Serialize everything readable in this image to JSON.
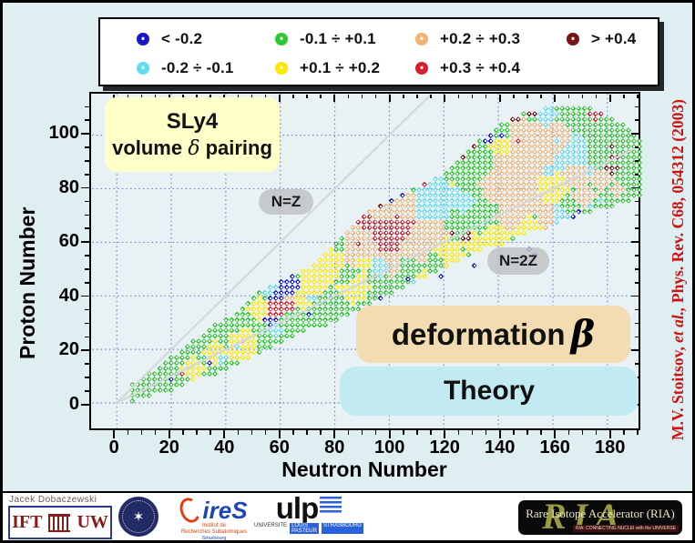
{
  "colors": {
    "slide_bg": "#dfeef1",
    "plot_bg": "#e8f1f4",
    "grid": "#2c47c8",
    "frame": "#000000",
    "citation": "#cc1212",
    "sly4_box_bg": "#ffffc9",
    "pill_bg": "#bec0c2",
    "deform_box_bg": "#f3dcb2",
    "theory_box_bg": "#c2eaf2"
  },
  "legend": {
    "items": [
      {
        "label": "< -0.2",
        "cat": "blue",
        "row": 0,
        "col": 0
      },
      {
        "label": "-0.2 ÷ -0.1",
        "cat": "cyan",
        "row": 1,
        "col": 0
      },
      {
        "label": "-0.1 ÷ +0.1",
        "cat": "green",
        "row": 0,
        "col": 1
      },
      {
        "label": "+0.1 ÷ +0.2",
        "cat": "yellow",
        "row": 1,
        "col": 1
      },
      {
        "label": "+0.2 ÷ +0.3",
        "cat": "orange",
        "row": 0,
        "col": 2
      },
      {
        "label": "+0.3 ÷ +0.4",
        "cat": "red",
        "row": 1,
        "col": 2
      },
      {
        "label": "> +0.4",
        "cat": "maroon",
        "row": 0,
        "col": 3
      }
    ]
  },
  "chart_data": {
    "type": "scatter",
    "description": "Nuclear chart heat-scatter of quadrupole deformation beta for even-even nuclei (SLy4, volume delta pairing), one diamond marker per nucleus on an even N x even Z lattice",
    "xlabel": "Neutron Number",
    "ylabel": "Proton Number",
    "x_range": [
      -9,
      191
    ],
    "y_range": [
      -9.5,
      115.5
    ],
    "x_major_ticks": [
      0,
      20,
      40,
      60,
      80,
      100,
      120,
      140,
      160,
      180
    ],
    "y_major_ticks": [
      0,
      20,
      40,
      60,
      80,
      100
    ],
    "minor_tick_step": 5,
    "grid": "dotted at major ticks",
    "legend_position": "top outside",
    "categories": {
      "blue": {
        "label": "< -0.2",
        "color": "#1818c8"
      },
      "cyan": {
        "label": "-0.2 ÷ -0.1",
        "color": "#5fdcf0"
      },
      "green": {
        "label": "-0.1 ÷ +0.1",
        "color": "#2fc82f"
      },
      "yellow": {
        "label": "+0.1 ÷ +0.2",
        "color": "#ffe800"
      },
      "orange": {
        "label": "+0.2 ÷ +0.3",
        "color": "#f2b375"
      },
      "red": {
        "label": "+0.3 ÷ +0.4",
        "color": "#d8202c"
      },
      "maroon": {
        "label": "> +0.4",
        "color": "#7a1216"
      }
    },
    "default_category": "green",
    "lattice_step": 2,
    "band": [
      [
        6,
        2,
        8
      ],
      [
        12,
        4,
        12
      ],
      [
        20,
        6,
        18
      ],
      [
        28,
        10,
        24
      ],
      [
        36,
        12,
        30
      ],
      [
        44,
        16,
        34
      ],
      [
        52,
        20,
        42
      ],
      [
        60,
        24,
        46
      ],
      [
        68,
        28,
        50
      ],
      [
        76,
        30,
        56
      ],
      [
        84,
        34,
        64
      ],
      [
        92,
        38,
        72
      ],
      [
        100,
        42,
        76
      ],
      [
        108,
        46,
        80
      ],
      [
        116,
        50,
        84
      ],
      [
        124,
        54,
        90
      ],
      [
        132,
        58,
        98
      ],
      [
        140,
        60,
        104
      ],
      [
        148,
        64,
        108
      ],
      [
        156,
        66,
        110
      ],
      [
        164,
        70,
        111
      ],
      [
        172,
        72,
        110
      ],
      [
        180,
        74,
        106
      ],
      [
        186,
        76,
        103
      ],
      [
        190,
        78,
        99
      ]
    ],
    "regions": [
      [
        28,
        14,
        3,
        "yellow"
      ],
      [
        36,
        20,
        3,
        "yellow"
      ],
      [
        45,
        22,
        4,
        "yellow"
      ],
      [
        48,
        26,
        3,
        "yellow"
      ],
      [
        52,
        36,
        3,
        "yellow"
      ],
      [
        68,
        40,
        3,
        "yellow"
      ],
      [
        72,
        46,
        4,
        "yellow"
      ],
      [
        78,
        52,
        4,
        "yellow"
      ],
      [
        86,
        44,
        4,
        "yellow"
      ],
      [
        90,
        54,
        3,
        "yellow"
      ],
      [
        112,
        46,
        3,
        "yellow"
      ],
      [
        120,
        56,
        4,
        "yellow"
      ],
      [
        130,
        60,
        3,
        "yellow"
      ],
      [
        138,
        63,
        3,
        "yellow"
      ],
      [
        150,
        64,
        4,
        "yellow"
      ],
      [
        157,
        82,
        5,
        "yellow"
      ],
      [
        140,
        96,
        3,
        "yellow"
      ],
      [
        122,
        82,
        3,
        "yellow"
      ],
      [
        38,
        18,
        2,
        "cyan"
      ],
      [
        44,
        22,
        2,
        "cyan"
      ],
      [
        58,
        28,
        2,
        "cyan"
      ],
      [
        56,
        44,
        3,
        "cyan"
      ],
      [
        70,
        40,
        2,
        "cyan"
      ],
      [
        96,
        52,
        3,
        "cyan"
      ],
      [
        108,
        44,
        2,
        "cyan"
      ],
      [
        114,
        74,
        5,
        "cyan"
      ],
      [
        120,
        80,
        5,
        "cyan"
      ],
      [
        126,
        76,
        3,
        "cyan"
      ],
      [
        148,
        60,
        3,
        "cyan"
      ],
      [
        160,
        70,
        3,
        "cyan"
      ],
      [
        165,
        92,
        6,
        "cyan"
      ],
      [
        160,
        98,
        3,
        "cyan"
      ],
      [
        157,
        87,
        3,
        "cyan"
      ],
      [
        156,
        108,
        3,
        "cyan"
      ],
      [
        46,
        24,
        2,
        "orange"
      ],
      [
        62,
        40,
        2,
        "orange"
      ],
      [
        90,
        58,
        5,
        "orange"
      ],
      [
        100,
        54,
        4,
        "orange"
      ],
      [
        110,
        60,
        5,
        "orange"
      ],
      [
        88,
        64,
        4,
        "orange"
      ],
      [
        96,
        72,
        4,
        "orange"
      ],
      [
        104,
        74,
        4,
        "orange"
      ],
      [
        114,
        64,
        4,
        "orange"
      ],
      [
        142,
        85,
        7,
        "orange"
      ],
      [
        152,
        92,
        8,
        "orange"
      ],
      [
        160,
        97,
        5,
        "orange"
      ],
      [
        166,
        87,
        4,
        "orange"
      ],
      [
        150,
        78,
        5,
        "orange"
      ],
      [
        144,
        70,
        4,
        "orange"
      ],
      [
        157,
        70,
        3,
        "orange"
      ],
      [
        170,
        78,
        3,
        "orange"
      ],
      [
        147,
        102,
        3,
        "orange"
      ],
      [
        176,
        84,
        3,
        "orange"
      ],
      [
        182,
        80,
        2,
        "orange"
      ],
      [
        24,
        12,
        1.2,
        "red"
      ],
      [
        58,
        36,
        3,
        "red"
      ],
      [
        62,
        38,
        2.5,
        "red"
      ],
      [
        98,
        62,
        5,
        "red"
      ],
      [
        103,
        66,
        4,
        "red"
      ],
      [
        96,
        68,
        3,
        "red"
      ],
      [
        90,
        68,
        3,
        "red"
      ],
      [
        88,
        60,
        2,
        "red"
      ],
      [
        112,
        84,
        1.5,
        "red"
      ],
      [
        146,
        98,
        1.5,
        "red"
      ],
      [
        174,
        108,
        1.5,
        "red"
      ],
      [
        20,
        10,
        1.2,
        "blue"
      ],
      [
        34,
        16,
        1.2,
        "blue"
      ],
      [
        60,
        42,
        4,
        "blue"
      ],
      [
        64,
        44,
        3,
        "blue"
      ],
      [
        56,
        32,
        1.8,
        "blue"
      ],
      [
        100,
        76,
        1.5,
        "blue"
      ],
      [
        104,
        78,
        1.3,
        "blue"
      ],
      [
        136,
        98,
        1.5,
        "blue"
      ],
      [
        140,
        100,
        1.3,
        "blue"
      ],
      [
        96,
        74,
        1.2,
        "maroon"
      ],
      [
        104,
        80,
        1.2,
        "maroon"
      ],
      [
        110,
        82,
        1.2,
        "maroon"
      ],
      [
        118,
        86,
        1.2,
        "maroon"
      ],
      [
        126,
        92,
        1.2,
        "maroon"
      ],
      [
        133,
        104,
        1.6,
        "maroon"
      ],
      [
        139,
        106,
        1.6,
        "maroon"
      ],
      [
        145,
        106,
        1.6,
        "maroon"
      ],
      [
        130,
        96,
        1.2,
        "maroon"
      ],
      [
        122,
        64,
        1.2,
        "maroon"
      ],
      [
        128,
        62,
        1.5,
        "maroon"
      ],
      [
        151,
        108,
        1.3,
        "maroon"
      ],
      [
        180,
        88,
        1.8,
        "maroon"
      ],
      [
        180,
        92,
        1.8,
        "maroon"
      ],
      [
        181,
        96,
        1.6,
        "maroon"
      ],
      [
        187,
        101,
        1.4,
        "maroon"
      ],
      [
        78,
        40,
        3,
        "green"
      ],
      [
        84,
        48,
        3,
        "green"
      ],
      [
        106,
        52,
        3,
        "green"
      ],
      [
        116,
        54,
        3,
        "green"
      ],
      [
        124,
        86,
        6,
        "green"
      ],
      [
        132,
        90,
        5,
        "green"
      ],
      [
        176,
        94,
        5,
        "green"
      ],
      [
        184,
        98,
        4,
        "green"
      ],
      [
        50,
        28,
        3,
        "green"
      ],
      [
        40,
        24,
        2,
        "green"
      ]
    ],
    "extra_points": [
      [
        70,
        34,
        "blue"
      ],
      [
        106,
        47,
        "blue"
      ],
      [
        118,
        48,
        "blue"
      ],
      [
        130,
        52,
        "blue"
      ],
      [
        150,
        58,
        "blue"
      ],
      [
        152,
        56,
        "blue"
      ],
      [
        166,
        70,
        "blue"
      ],
      [
        168,
        72,
        "blue"
      ],
      [
        172,
        74,
        "cyan"
      ],
      [
        176,
        76,
        "cyan"
      ],
      [
        96,
        40,
        "blue"
      ]
    ],
    "reference_lines": [
      {
        "label": "N=Z",
        "from": [
          0,
          0
        ],
        "to": [
          115,
          115
        ]
      },
      {
        "label": "N=2Z",
        "from": [
          0,
          0
        ],
        "to": [
          191,
          95.5
        ]
      }
    ],
    "annotations": {
      "model_line1": "SLy4",
      "model_line2_prefix": "volume ",
      "model_delta": "δ",
      "model_line2_suffix": " pairing",
      "nz_label": "N=Z",
      "n2z_label": "N=2Z",
      "quantity_prefix": "deformation",
      "quantity_symbol": "β",
      "theory_label": "Theory"
    }
  },
  "citation": {
    "part1": "M.V. Stoitsov, ",
    "part2": "et al.,",
    "part3": " Phys. Rev. C68, 054312 (2003)"
  },
  "footer": {
    "author": "Jacek Dobaczewski",
    "ift": {
      "left": "IFT",
      "right": "UW"
    },
    "ires": {
      "name": "ireS",
      "sub1": "Institut de",
      "sub2": "Recherches Subatomiques",
      "sub3": "Strasbourg"
    },
    "ulp": {
      "name": "ulp",
      "sub1": "UNIVERSITE",
      "sub2": "LOUIS PASTEUR",
      "sub3": "STRASBOURG"
    },
    "ria": {
      "big": "RIA",
      "title": "Rare Isotope Accelerator (RIA)",
      "tagline": "RIA: CONNECTING NUCLEI with the UNIVERSE"
    }
  }
}
